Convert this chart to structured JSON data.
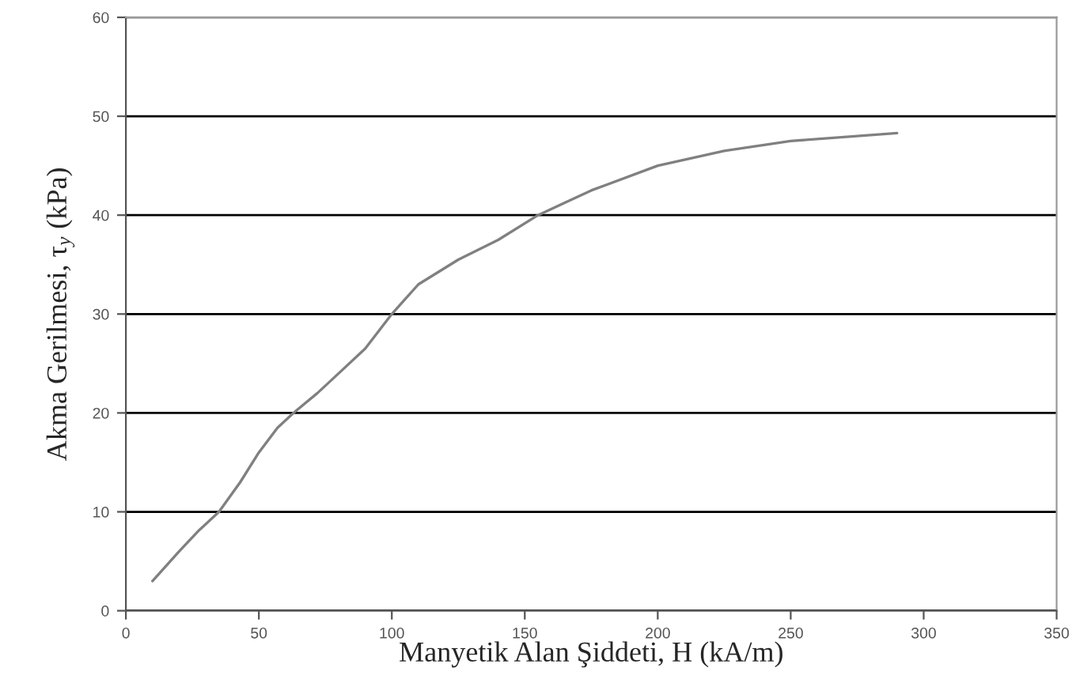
{
  "chart_data": {
    "type": "line",
    "xlabel": "Manyetik Alan Şiddeti, H (kA/m)",
    "ylabel": "Akma Gerilmesi, τ$_{y}$ (kPa)",
    "xlim": [
      0,
      350
    ],
    "xticks": [
      0,
      50,
      100,
      150,
      200,
      250,
      300,
      350
    ],
    "ylim": [
      0,
      60
    ],
    "yticks": [
      0,
      10,
      20,
      30,
      40,
      50,
      60
    ],
    "grid": "y",
    "marker": "none",
    "line_style": "solid",
    "series": [
      {
        "color": "#808080",
        "x": [
          10,
          20,
          27,
          35,
          43,
          50,
          57,
          63,
          72,
          80,
          90,
          100,
          110,
          125,
          140,
          155,
          175,
          200,
          225,
          250,
          270,
          290
        ],
        "values": [
          3,
          6,
          8,
          10,
          13,
          16,
          18.5,
          20,
          22,
          24,
          26.5,
          30,
          33,
          35.5,
          37.5,
          40,
          42.5,
          45,
          46.5,
          47.5,
          47.9,
          48.3
        ]
      }
    ]
  }
}
